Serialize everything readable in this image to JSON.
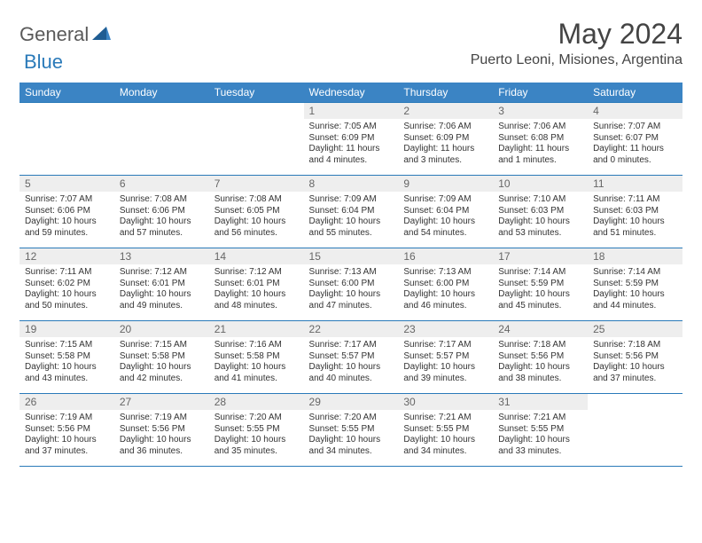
{
  "brand": {
    "text1": "General",
    "text2": "Blue"
  },
  "title": "May 2024",
  "location": "Puerto Leoni, Misiones, Argentina",
  "colors": {
    "header_bg": "#3b84c4",
    "border": "#2a7ab9",
    "daynum_bg": "#eeeeee",
    "text": "#333333",
    "background": "#ffffff"
  },
  "weekdays": [
    "Sunday",
    "Monday",
    "Tuesday",
    "Wednesday",
    "Thursday",
    "Friday",
    "Saturday"
  ],
  "weeks": [
    [
      null,
      null,
      null,
      {
        "n": "1",
        "sr": "7:05 AM",
        "ss": "6:09 PM",
        "dh": "11",
        "dm": "4"
      },
      {
        "n": "2",
        "sr": "7:06 AM",
        "ss": "6:09 PM",
        "dh": "11",
        "dm": "3"
      },
      {
        "n": "3",
        "sr": "7:06 AM",
        "ss": "6:08 PM",
        "dh": "11",
        "dm": "1"
      },
      {
        "n": "4",
        "sr": "7:07 AM",
        "ss": "6:07 PM",
        "dh": "11",
        "dm": "0"
      }
    ],
    [
      {
        "n": "5",
        "sr": "7:07 AM",
        "ss": "6:06 PM",
        "dh": "10",
        "dm": "59"
      },
      {
        "n": "6",
        "sr": "7:08 AM",
        "ss": "6:06 PM",
        "dh": "10",
        "dm": "57"
      },
      {
        "n": "7",
        "sr": "7:08 AM",
        "ss": "6:05 PM",
        "dh": "10",
        "dm": "56"
      },
      {
        "n": "8",
        "sr": "7:09 AM",
        "ss": "6:04 PM",
        "dh": "10",
        "dm": "55"
      },
      {
        "n": "9",
        "sr": "7:09 AM",
        "ss": "6:04 PM",
        "dh": "10",
        "dm": "54"
      },
      {
        "n": "10",
        "sr": "7:10 AM",
        "ss": "6:03 PM",
        "dh": "10",
        "dm": "53"
      },
      {
        "n": "11",
        "sr": "7:11 AM",
        "ss": "6:03 PM",
        "dh": "10",
        "dm": "51"
      }
    ],
    [
      {
        "n": "12",
        "sr": "7:11 AM",
        "ss": "6:02 PM",
        "dh": "10",
        "dm": "50"
      },
      {
        "n": "13",
        "sr": "7:12 AM",
        "ss": "6:01 PM",
        "dh": "10",
        "dm": "49"
      },
      {
        "n": "14",
        "sr": "7:12 AM",
        "ss": "6:01 PM",
        "dh": "10",
        "dm": "48"
      },
      {
        "n": "15",
        "sr": "7:13 AM",
        "ss": "6:00 PM",
        "dh": "10",
        "dm": "47"
      },
      {
        "n": "16",
        "sr": "7:13 AM",
        "ss": "6:00 PM",
        "dh": "10",
        "dm": "46"
      },
      {
        "n": "17",
        "sr": "7:14 AM",
        "ss": "5:59 PM",
        "dh": "10",
        "dm": "45"
      },
      {
        "n": "18",
        "sr": "7:14 AM",
        "ss": "5:59 PM",
        "dh": "10",
        "dm": "44"
      }
    ],
    [
      {
        "n": "19",
        "sr": "7:15 AM",
        "ss": "5:58 PM",
        "dh": "10",
        "dm": "43"
      },
      {
        "n": "20",
        "sr": "7:15 AM",
        "ss": "5:58 PM",
        "dh": "10",
        "dm": "42"
      },
      {
        "n": "21",
        "sr": "7:16 AM",
        "ss": "5:58 PM",
        "dh": "10",
        "dm": "41"
      },
      {
        "n": "22",
        "sr": "7:17 AM",
        "ss": "5:57 PM",
        "dh": "10",
        "dm": "40"
      },
      {
        "n": "23",
        "sr": "7:17 AM",
        "ss": "5:57 PM",
        "dh": "10",
        "dm": "39"
      },
      {
        "n": "24",
        "sr": "7:18 AM",
        "ss": "5:56 PM",
        "dh": "10",
        "dm": "38"
      },
      {
        "n": "25",
        "sr": "7:18 AM",
        "ss": "5:56 PM",
        "dh": "10",
        "dm": "37"
      }
    ],
    [
      {
        "n": "26",
        "sr": "7:19 AM",
        "ss": "5:56 PM",
        "dh": "10",
        "dm": "37"
      },
      {
        "n": "27",
        "sr": "7:19 AM",
        "ss": "5:56 PM",
        "dh": "10",
        "dm": "36"
      },
      {
        "n": "28",
        "sr": "7:20 AM",
        "ss": "5:55 PM",
        "dh": "10",
        "dm": "35"
      },
      {
        "n": "29",
        "sr": "7:20 AM",
        "ss": "5:55 PM",
        "dh": "10",
        "dm": "34"
      },
      {
        "n": "30",
        "sr": "7:21 AM",
        "ss": "5:55 PM",
        "dh": "10",
        "dm": "34"
      },
      {
        "n": "31",
        "sr": "7:21 AM",
        "ss": "5:55 PM",
        "dh": "10",
        "dm": "33"
      },
      null
    ]
  ]
}
